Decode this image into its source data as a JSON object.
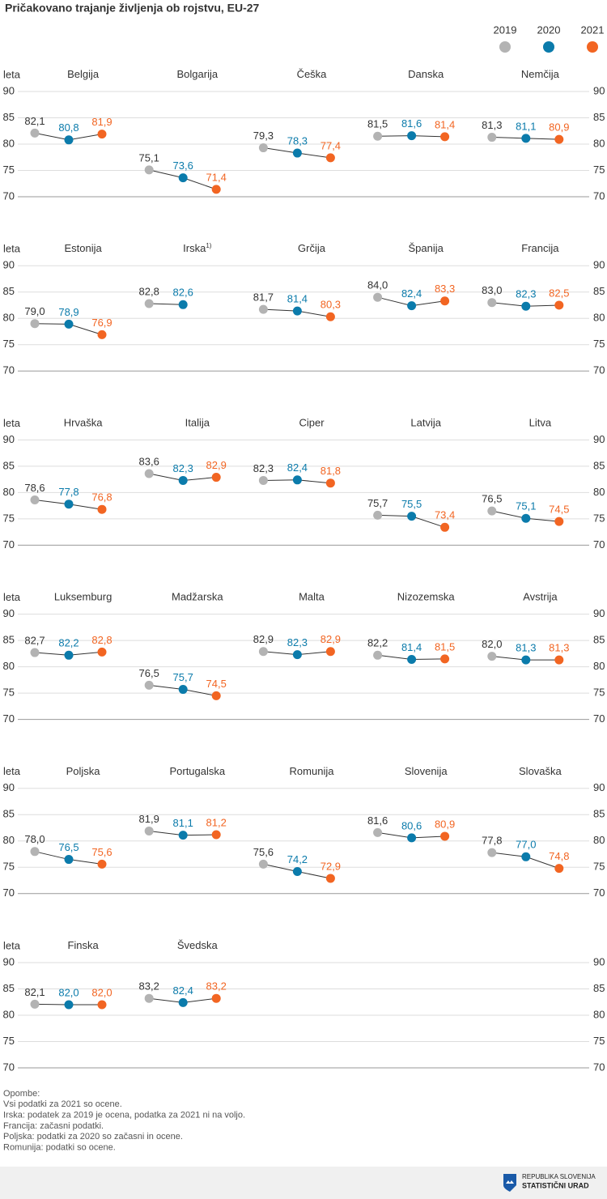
{
  "chart_data": {
    "type": "dot-line",
    "title": "Pričakovano trajanje življenja ob rojstvu, EU-27",
    "y_label": "leta",
    "series": [
      {
        "name": "2019",
        "color": "#b3b3b3",
        "label_color": "#333333"
      },
      {
        "name": "2020",
        "color": "#0b7bab",
        "label_color": "#0b7bab"
      },
      {
        "name": "2021",
        "color": "#f26522",
        "label_color": "#f26522"
      }
    ],
    "ylim": [
      70,
      90
    ],
    "yticks": [
      70,
      75,
      80,
      85,
      90
    ],
    "grid": true,
    "panels": [
      {
        "name": "Belgija",
        "values": [
          82.1,
          80.8,
          81.9
        ],
        "value_labels": [
          "82,1",
          "80,8",
          "81,9"
        ]
      },
      {
        "name": "Bolgarija",
        "values": [
          75.1,
          73.6,
          71.4
        ],
        "value_labels": [
          "75,1",
          "73,6",
          "71,4"
        ]
      },
      {
        "name": "Češka",
        "values": [
          79.3,
          78.3,
          77.4
        ],
        "value_labels": [
          "79,3",
          "78,3",
          "77,4"
        ]
      },
      {
        "name": "Danska",
        "values": [
          81.5,
          81.6,
          81.4
        ],
        "value_labels": [
          "81,5",
          "81,6",
          "81,4"
        ]
      },
      {
        "name": "Nemčija",
        "values": [
          81.3,
          81.1,
          80.9
        ],
        "value_labels": [
          "81,3",
          "81,1",
          "80,9"
        ]
      },
      {
        "name": "Estonija",
        "values": [
          79.0,
          78.9,
          76.9
        ],
        "value_labels": [
          "79,0",
          "78,9",
          "76,9"
        ]
      },
      {
        "name": "Irska",
        "note_mark": "1)",
        "values": [
          82.8,
          82.6,
          null
        ],
        "value_labels": [
          "82,8",
          "82,6",
          null
        ]
      },
      {
        "name": "Grčija",
        "values": [
          81.7,
          81.4,
          80.3
        ],
        "value_labels": [
          "81,7",
          "81,4",
          "80,3"
        ]
      },
      {
        "name": "Španija",
        "values": [
          84.0,
          82.4,
          83.3
        ],
        "value_labels": [
          "84,0",
          "82,4",
          "83,3"
        ]
      },
      {
        "name": "Francija",
        "values": [
          83.0,
          82.3,
          82.5
        ],
        "value_labels": [
          "83,0",
          "82,3",
          "82,5"
        ]
      },
      {
        "name": "Hrvaška",
        "values": [
          78.6,
          77.8,
          76.8
        ],
        "value_labels": [
          "78,6",
          "77,8",
          "76,8"
        ]
      },
      {
        "name": "Italija",
        "values": [
          83.6,
          82.3,
          82.9
        ],
        "value_labels": [
          "83,6",
          "82,3",
          "82,9"
        ]
      },
      {
        "name": "Ciper",
        "values": [
          82.3,
          82.4,
          81.8
        ],
        "value_labels": [
          "82,3",
          "82,4",
          "81,8"
        ]
      },
      {
        "name": "Latvija",
        "values": [
          75.7,
          75.5,
          73.4
        ],
        "value_labels": [
          "75,7",
          "75,5",
          "73,4"
        ]
      },
      {
        "name": "Litva",
        "values": [
          76.5,
          75.1,
          74.5
        ],
        "value_labels": [
          "76,5",
          "75,1",
          "74,5"
        ]
      },
      {
        "name": "Luksemburg",
        "values": [
          82.7,
          82.2,
          82.8
        ],
        "value_labels": [
          "82,7",
          "82,2",
          "82,8"
        ]
      },
      {
        "name": "Madžarska",
        "values": [
          76.5,
          75.7,
          74.5
        ],
        "value_labels": [
          "76,5",
          "75,7",
          "74,5"
        ]
      },
      {
        "name": "Malta",
        "values": [
          82.9,
          82.3,
          82.9
        ],
        "value_labels": [
          "82,9",
          "82,3",
          "82,9"
        ]
      },
      {
        "name": "Nizozemska",
        "values": [
          82.2,
          81.4,
          81.5
        ],
        "value_labels": [
          "82,2",
          "81,4",
          "81,5"
        ]
      },
      {
        "name": "Avstrija",
        "values": [
          82.0,
          81.3,
          81.3
        ],
        "value_labels": [
          "82,0",
          "81,3",
          "81,3"
        ]
      },
      {
        "name": "Poljska",
        "values": [
          78.0,
          76.5,
          75.6
        ],
        "value_labels": [
          "78,0",
          "76,5",
          "75,6"
        ]
      },
      {
        "name": "Portugalska",
        "values": [
          81.9,
          81.1,
          81.2
        ],
        "value_labels": [
          "81,9",
          "81,1",
          "81,2"
        ]
      },
      {
        "name": "Romunija",
        "values": [
          75.6,
          74.2,
          72.9
        ],
        "value_labels": [
          "75,6",
          "74,2",
          "72,9"
        ]
      },
      {
        "name": "Slovenija",
        "values": [
          81.6,
          80.6,
          80.9
        ],
        "value_labels": [
          "81,6",
          "80,6",
          "80,9"
        ]
      },
      {
        "name": "Slovaška",
        "values": [
          77.8,
          77.0,
          74.8
        ],
        "value_labels": [
          "77,8",
          "77,0",
          "74,8"
        ]
      },
      {
        "name": "Finska",
        "values": [
          82.1,
          82.0,
          82.0
        ],
        "value_labels": [
          "82,1",
          "82,0",
          "82,0"
        ]
      },
      {
        "name": "Švedska",
        "values": [
          83.2,
          82.4,
          83.2
        ],
        "value_labels": [
          "83,2",
          "82,4",
          "83,2"
        ]
      }
    ],
    "notes": [
      "Opombe:",
      "Vsi podatki za 2021 so ocene.",
      "Irska: podatek za 2019 je ocena, podatka za 2021 ni na voljo.",
      "Francija: začasni podatki.",
      "Poljska: podatki za 2020 so začasni in ocene.",
      "Romunija: podatki so ocene."
    ]
  },
  "footer": {
    "line1": "REPUBLIKA SLOVENIJA",
    "line2": "STATISTIČNI URAD"
  }
}
